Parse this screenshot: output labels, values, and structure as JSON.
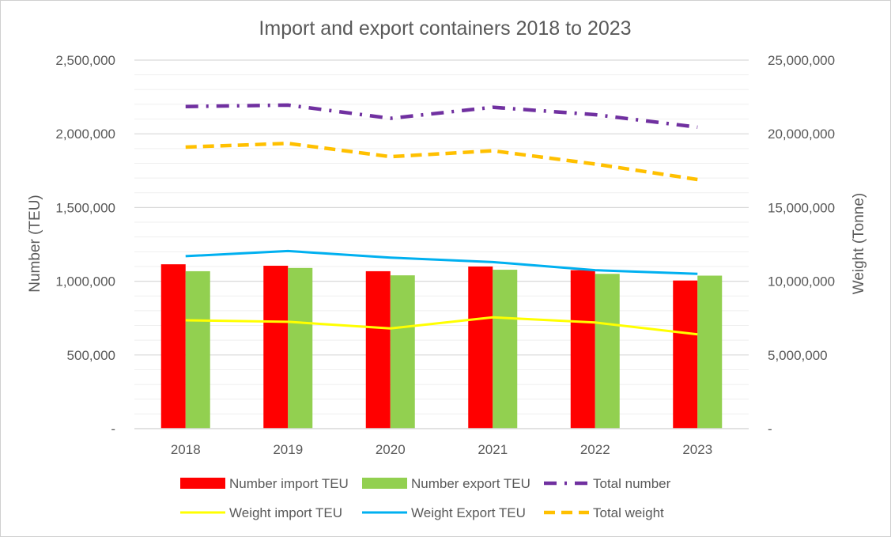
{
  "chart_data": {
    "type": "bar",
    "title": "Import and export containers 2018 to 2023",
    "categories": [
      "2018",
      "2019",
      "2020",
      "2021",
      "2022",
      "2023"
    ],
    "ylabel": "Number (TEU)",
    "y2label": "Weight (Tonne)",
    "ylim": [
      0,
      2500000
    ],
    "y2lim": [
      0,
      25000000
    ],
    "yticks": [
      "-",
      "500,000",
      "1,000,000",
      "1,500,000",
      "2,000,000",
      "2,500,000"
    ],
    "y2ticks": [
      "-",
      "5,000,000",
      "10,000,000",
      "15,000,000",
      "20,000,000",
      "25,000,000"
    ],
    "grid": true,
    "legend_position": "bottom",
    "series": [
      {
        "name": "Number import TEU",
        "kind": "bar",
        "axis": "left",
        "color": "#ff0000",
        "values": [
          1115000,
          1105000,
          1068000,
          1100000,
          1075000,
          1005000
        ]
      },
      {
        "name": "Number export TEU",
        "kind": "bar",
        "axis": "left",
        "color": "#92d050",
        "values": [
          1068000,
          1090000,
          1040000,
          1078000,
          1050000,
          1038000
        ]
      },
      {
        "name": "Total number",
        "kind": "line",
        "style": "dash-dot",
        "axis": "left",
        "color": "#7030a0",
        "values": [
          2185000,
          2195000,
          2105000,
          2180000,
          2130000,
          2045000
        ]
      },
      {
        "name": "Weight import TEU",
        "kind": "line",
        "style": "solid",
        "axis": "right",
        "color": "#ffff00",
        "values": [
          7350000,
          7250000,
          6800000,
          7550000,
          7200000,
          6400000
        ]
      },
      {
        "name": "Weight Export TEU",
        "kind": "line",
        "style": "solid",
        "axis": "right",
        "color": "#00b0f0",
        "values": [
          11700000,
          12050000,
          11600000,
          11300000,
          10750000,
          10500000
        ]
      },
      {
        "name": "Total weight",
        "kind": "line",
        "style": "dash",
        "axis": "right",
        "color": "#ffc000",
        "values": [
          19100000,
          19350000,
          18450000,
          18850000,
          17950000,
          16900000
        ]
      }
    ]
  }
}
